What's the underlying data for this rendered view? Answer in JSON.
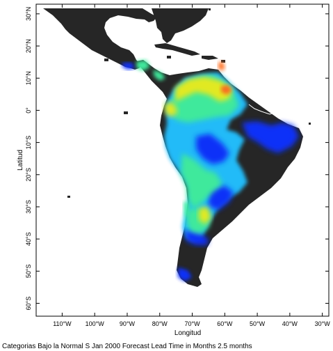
{
  "map": {
    "x_axis": {
      "title": "Longitud",
      "ticks": [
        {
          "value": -110,
          "label": "110°W"
        },
        {
          "value": -100,
          "label": "100°W"
        },
        {
          "value": -90,
          "label": "90°W"
        },
        {
          "value": -80,
          "label": "80°W"
        },
        {
          "value": -70,
          "label": "70°W"
        },
        {
          "value": -60,
          "label": "60°W"
        },
        {
          "value": -50,
          "label": "50°W"
        },
        {
          "value": -40,
          "label": "40°W"
        },
        {
          "value": -30,
          "label": "30°W"
        }
      ],
      "range": [
        -118,
        -28
      ]
    },
    "y_axis": {
      "title": "Latitud",
      "ticks": [
        {
          "value": 30,
          "label": "30°N"
        },
        {
          "value": 20,
          "label": "20°N"
        },
        {
          "value": 10,
          "label": "10°N"
        },
        {
          "value": 0,
          "label": "0°"
        },
        {
          "value": -10,
          "label": "10°S"
        },
        {
          "value": -20,
          "label": "20°S"
        },
        {
          "value": -30,
          "label": "30°S"
        },
        {
          "value": -40,
          "label": "40°S"
        },
        {
          "value": -50,
          "label": "50°S"
        },
        {
          "value": -60,
          "label": "60°S"
        }
      ],
      "range": [
        -64,
        33
      ]
    },
    "caption": "Categorias Bajo la Normal S Jan 2000 Forecast Lead Time in Months 2.5 months",
    "colors": {
      "land_no_data": "#262626",
      "probability_low": "#1030ff",
      "probability_mid_low": "#20c0ff",
      "probability_mid": "#40f0a0",
      "probability_mid_high": "#e8f020",
      "probability_high": "#ff7020"
    }
  }
}
